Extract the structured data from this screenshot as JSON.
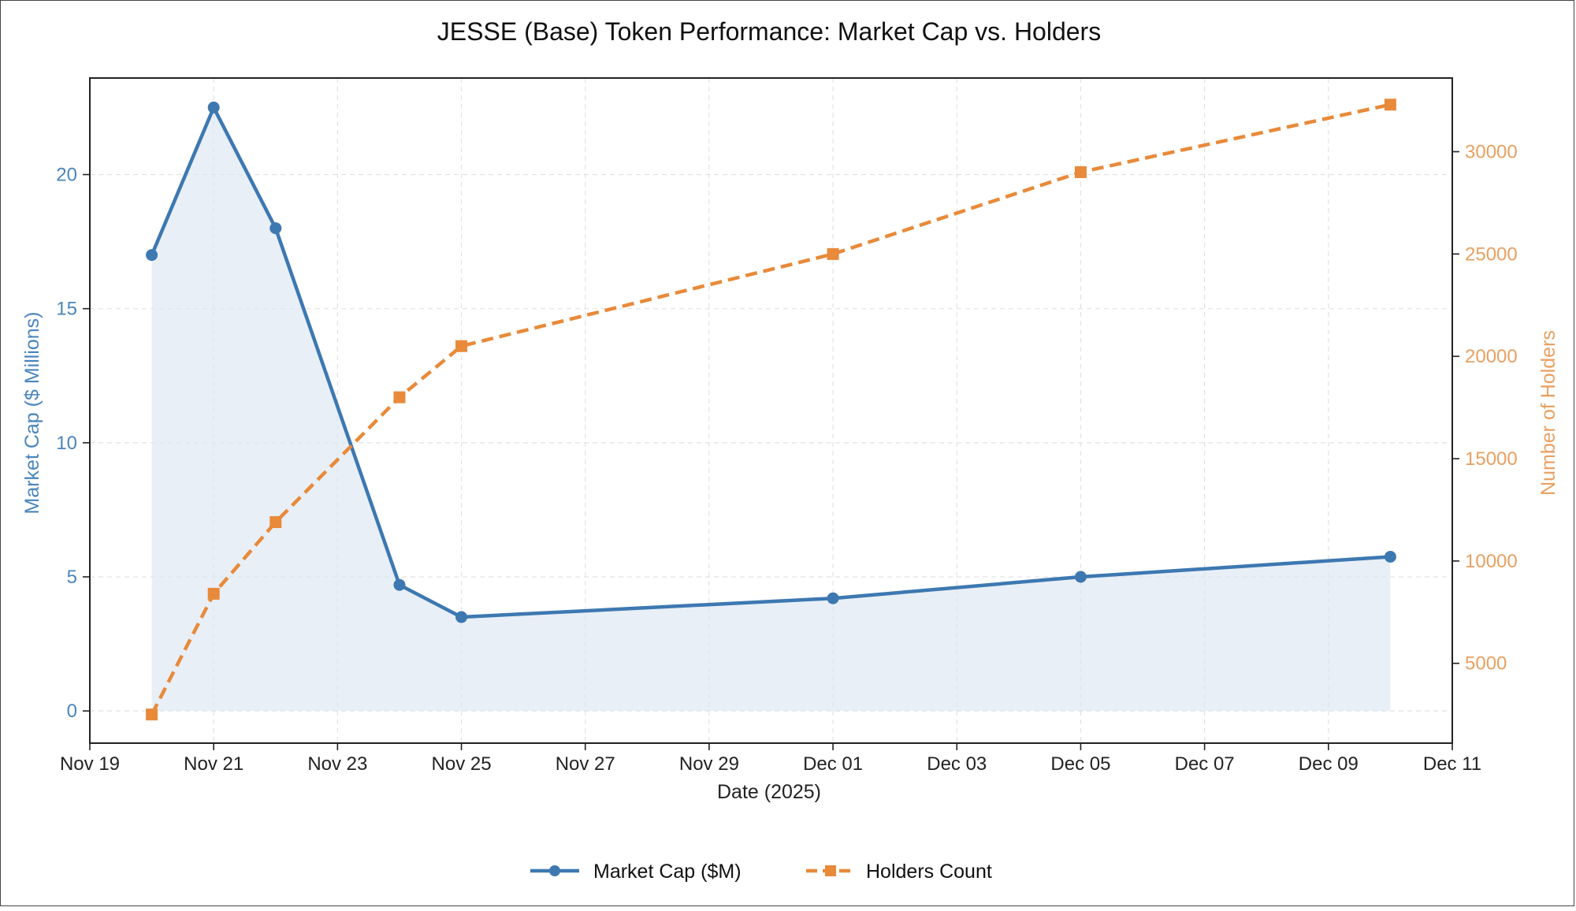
{
  "chart_data": {
    "type": "line",
    "title": "JESSE (Base) Token Performance: Market Cap vs. Holders",
    "xlabel": "Date (2025)",
    "ylabel_left": "Market Cap ($ Millions)",
    "ylabel_right": "Number of Holders",
    "x_ticks": [
      "Nov 19",
      "Nov 21",
      "Nov 23",
      "Nov 25",
      "Nov 27",
      "Nov 29",
      "Dec 01",
      "Dec 03",
      "Dec 05",
      "Dec 07",
      "Dec 09",
      "Dec 11"
    ],
    "x_tick_dates": [
      "2025-11-19",
      "2025-11-21",
      "2025-11-23",
      "2025-11-25",
      "2025-11-27",
      "2025-11-29",
      "2025-12-01",
      "2025-12-03",
      "2025-12-05",
      "2025-12-07",
      "2025-12-09",
      "2025-12-11"
    ],
    "xlim": [
      "2025-11-19",
      "2025-12-11"
    ],
    "y_left_ticks": [
      0,
      5,
      10,
      15,
      20
    ],
    "y_left_lim": [
      -1.2,
      23.6
    ],
    "y_right_ticks": [
      5000,
      10000,
      15000,
      20000,
      25000,
      30000
    ],
    "y_right_lim": [
      1100,
      33600
    ],
    "grid": true,
    "legend_position": "bottom-center",
    "series": [
      {
        "name": "Market Cap ($M)",
        "axis": "left",
        "color": "#3d78b1",
        "fill": true,
        "x": [
          "2025-11-20",
          "2025-11-21",
          "2025-11-22",
          "2025-11-24",
          "2025-11-25",
          "2025-12-01",
          "2025-12-05",
          "2025-12-10"
        ],
        "values": [
          17.0,
          22.5,
          18.0,
          4.7,
          3.5,
          4.2,
          5.0,
          5.75
        ]
      },
      {
        "name": "Holders Count",
        "axis": "right",
        "color": "#e88a3a",
        "dashed": true,
        "x": [
          "2025-11-20",
          "2025-11-21",
          "2025-11-22",
          "2025-11-24",
          "2025-11-25",
          "2025-12-01",
          "2025-12-05",
          "2025-12-10"
        ],
        "values": [
          2500,
          8400,
          11900,
          18000,
          20500,
          25000,
          29000,
          32300
        ]
      }
    ]
  }
}
